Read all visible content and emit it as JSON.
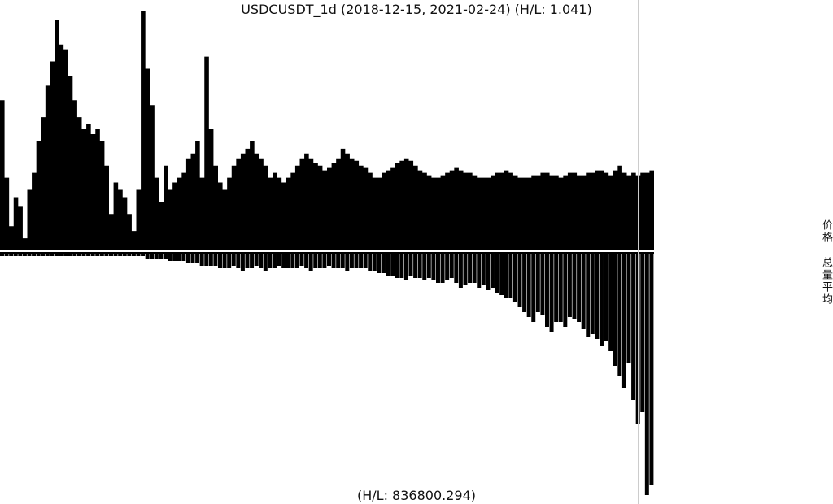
{
  "chart_data": [
    {
      "type": "area",
      "title": "USDCUSDT_1d (2018-12-15, 2021-02-24) (H/L: 1.041)",
      "ylabel": "价格",
      "x_range": [
        "2018-12-15",
        "2021-02-24"
      ],
      "grid": false,
      "color": "#000000",
      "series": [
        {
          "values": [
            0.62,
            0.3,
            0.1,
            0.22,
            0.18,
            0.05,
            0.25,
            0.32,
            0.45,
            0.55,
            0.68,
            0.78,
            0.95,
            0.85,
            0.83,
            0.72,
            0.62,
            0.55,
            0.5,
            0.52,
            0.48,
            0.5,
            0.45,
            0.35,
            0.15,
            0.28,
            0.25,
            0.22,
            0.15,
            0.08,
            0.25,
            0.99,
            0.75,
            0.6,
            0.3,
            0.2,
            0.35,
            0.25,
            0.28,
            0.3,
            0.32,
            0.38,
            0.4,
            0.45,
            0.3,
            0.8,
            0.5,
            0.35,
            0.28,
            0.25,
            0.3,
            0.35,
            0.38,
            0.4,
            0.42,
            0.45,
            0.4,
            0.38,
            0.35,
            0.3,
            0.32,
            0.3,
            0.28,
            0.3,
            0.32,
            0.35,
            0.38,
            0.4,
            0.38,
            0.36,
            0.35,
            0.33,
            0.34,
            0.36,
            0.38,
            0.42,
            0.4,
            0.38,
            0.37,
            0.35,
            0.34,
            0.32,
            0.3,
            0.3,
            0.32,
            0.33,
            0.34,
            0.36,
            0.37,
            0.38,
            0.37,
            0.35,
            0.33,
            0.32,
            0.31,
            0.3,
            0.3,
            0.31,
            0.32,
            0.33,
            0.34,
            0.33,
            0.32,
            0.32,
            0.31,
            0.3,
            0.3,
            0.3,
            0.31,
            0.32,
            0.32,
            0.33,
            0.32,
            0.31,
            0.3,
            0.3,
            0.3,
            0.31,
            0.31,
            0.32,
            0.32,
            0.31,
            0.31,
            0.3,
            0.31,
            0.32,
            0.32,
            0.31,
            0.31,
            0.32,
            0.32,
            0.33,
            0.33,
            0.32,
            0.31,
            0.33,
            0.35,
            0.32,
            0.31,
            0.32,
            0.31,
            0.32,
            0.32,
            0.33
          ]
        }
      ]
    },
    {
      "type": "bar",
      "ylabel": "总量平均",
      "x_range": [
        "2018-12-15",
        "2021-02-24"
      ],
      "annotation": "(H/L: 836800.294)",
      "grid": false,
      "color": "#000000",
      "series": [
        {
          "values": [
            0.01,
            0.01,
            0.01,
            0.01,
            0.01,
            0.01,
            0.01,
            0.01,
            0.01,
            0.01,
            0.01,
            0.01,
            0.01,
            0.01,
            0.01,
            0.01,
            0.01,
            0.01,
            0.01,
            0.01,
            0.01,
            0.01,
            0.01,
            0.01,
            0.01,
            0.01,
            0.01,
            0.01,
            0.01,
            0.01,
            0.01,
            0.01,
            0.02,
            0.02,
            0.02,
            0.02,
            0.02,
            0.03,
            0.03,
            0.03,
            0.03,
            0.04,
            0.04,
            0.04,
            0.05,
            0.05,
            0.05,
            0.05,
            0.06,
            0.06,
            0.06,
            0.05,
            0.06,
            0.07,
            0.06,
            0.06,
            0.05,
            0.06,
            0.07,
            0.06,
            0.06,
            0.05,
            0.06,
            0.06,
            0.06,
            0.06,
            0.05,
            0.06,
            0.07,
            0.06,
            0.06,
            0.06,
            0.05,
            0.06,
            0.06,
            0.06,
            0.07,
            0.06,
            0.06,
            0.06,
            0.06,
            0.07,
            0.07,
            0.08,
            0.08,
            0.09,
            0.09,
            0.1,
            0.1,
            0.11,
            0.09,
            0.1,
            0.1,
            0.11,
            0.1,
            0.11,
            0.12,
            0.12,
            0.11,
            0.1,
            0.12,
            0.14,
            0.13,
            0.12,
            0.12,
            0.14,
            0.13,
            0.15,
            0.14,
            0.16,
            0.17,
            0.18,
            0.18,
            0.2,
            0.22,
            0.24,
            0.26,
            0.28,
            0.24,
            0.25,
            0.3,
            0.32,
            0.28,
            0.28,
            0.3,
            0.26,
            0.27,
            0.28,
            0.31,
            0.34,
            0.33,
            0.35,
            0.38,
            0.36,
            0.4,
            0.46,
            0.5,
            0.55,
            0.45,
            0.6,
            0.7,
            0.65,
            0.99,
            0.95
          ]
        }
      ]
    }
  ],
  "labels": {
    "title": "USDCUSDT_1d (2018-12-15, 2021-02-24) (H/L: 1.041)",
    "footer": "(H/L: 836800.294)",
    "price_axis": "价格",
    "volume_axis": "总量平均"
  }
}
